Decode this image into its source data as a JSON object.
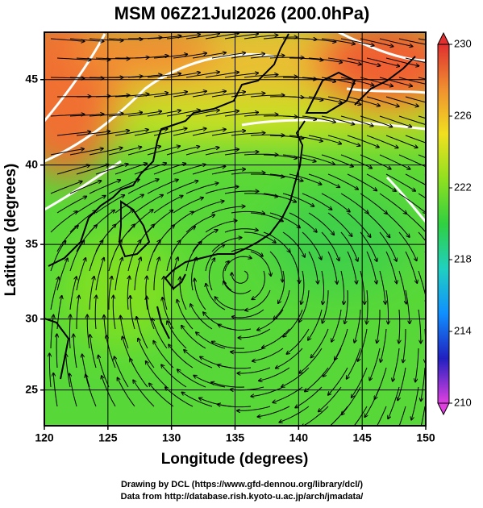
{
  "chart_data": {
    "type": "map",
    "title": "MSM 06Z21Jul2026 (200.0hPa)",
    "xlabel": "Longitude (degrees)",
    "ylabel": "Latitude  (degrees)",
    "xlim": [
      120,
      150
    ],
    "ylim": [
      22.4,
      47.6
    ],
    "projection": "mercator",
    "xticks": [
      120,
      125,
      130,
      135,
      140,
      145,
      150
    ],
    "yticks": [
      25,
      30,
      35,
      40,
      45
    ],
    "grid": true,
    "colorbar": {
      "lim": [
        210,
        230
      ],
      "ticks": [
        210,
        214,
        218,
        222,
        226,
        230
      ],
      "colors": [
        "#e040e0",
        "#2020c0",
        "#1090ff",
        "#20d0c0",
        "#30d040",
        "#90e020",
        "#f0e020",
        "#f09030",
        "#e03030"
      ]
    },
    "footer": [
      "Drawing by DCL (https://www.gfd-dennou.org/library/dcl/)",
      "Data from http://database.rish.kyoto-u.ac.jp/arch/jmadata/"
    ]
  }
}
